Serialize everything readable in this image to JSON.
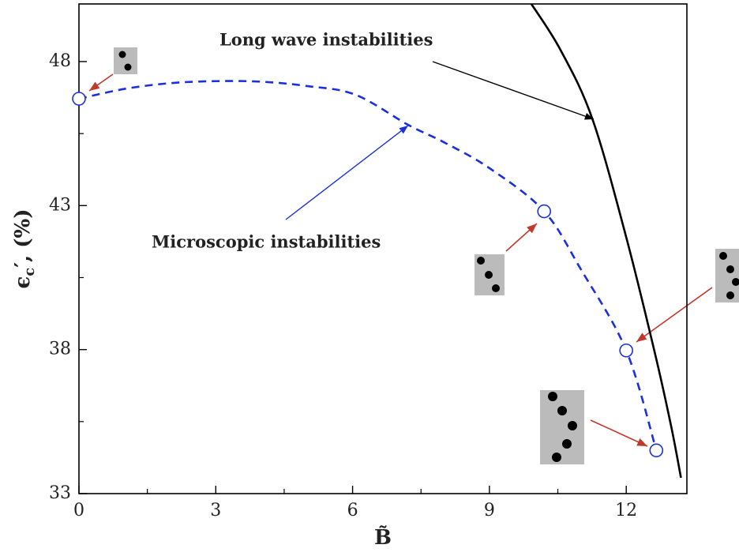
{
  "chart_data": {
    "type": "line",
    "x_label": "B̃",
    "y_label": "ϵ",
    "y_label_sub": "c",
    "y_label_rest": "′, (%)",
    "xlim": [
      0,
      13.33
    ],
    "ylim": [
      33,
      50
    ],
    "xticks": [
      0,
      3,
      6,
      9,
      12
    ],
    "yticks": [
      33,
      38,
      43,
      48
    ],
    "xminorticks": [
      1.5,
      4.5,
      7.5,
      10.5
    ],
    "yminorticks": [
      35.5,
      40.5,
      45.5
    ],
    "series": [
      {
        "name": "Microscopic instabilities",
        "color": "#1a2fe0",
        "dash": true,
        "x": [
          0,
          1,
          2,
          3,
          4,
          5,
          6.06,
          7.22,
          8,
          9,
          10.2,
          11,
          12,
          12.66
        ],
        "values": [
          46.71,
          47.05,
          47.25,
          47.32,
          47.3,
          47.15,
          46.85,
          45.8,
          45.2,
          44.3,
          42.8,
          40.8,
          37.97,
          34.5
        ]
      },
      {
        "name": "Long wave instabilities",
        "color": "#000000",
        "dash": false,
        "x": [
          9.92,
          10.56,
          11.26,
          12.0,
          12.64,
          12.99,
          13.2
        ],
        "values": [
          50,
          48.4,
          46.0,
          41.9,
          37.8,
          35.3,
          33.55
        ]
      }
    ],
    "points": {
      "color": "#1a2fe0",
      "x": [
        0,
        10.2,
        12.0,
        12.66
      ],
      "values": [
        46.71,
        42.8,
        37.97,
        34.5
      ]
    }
  }
}
